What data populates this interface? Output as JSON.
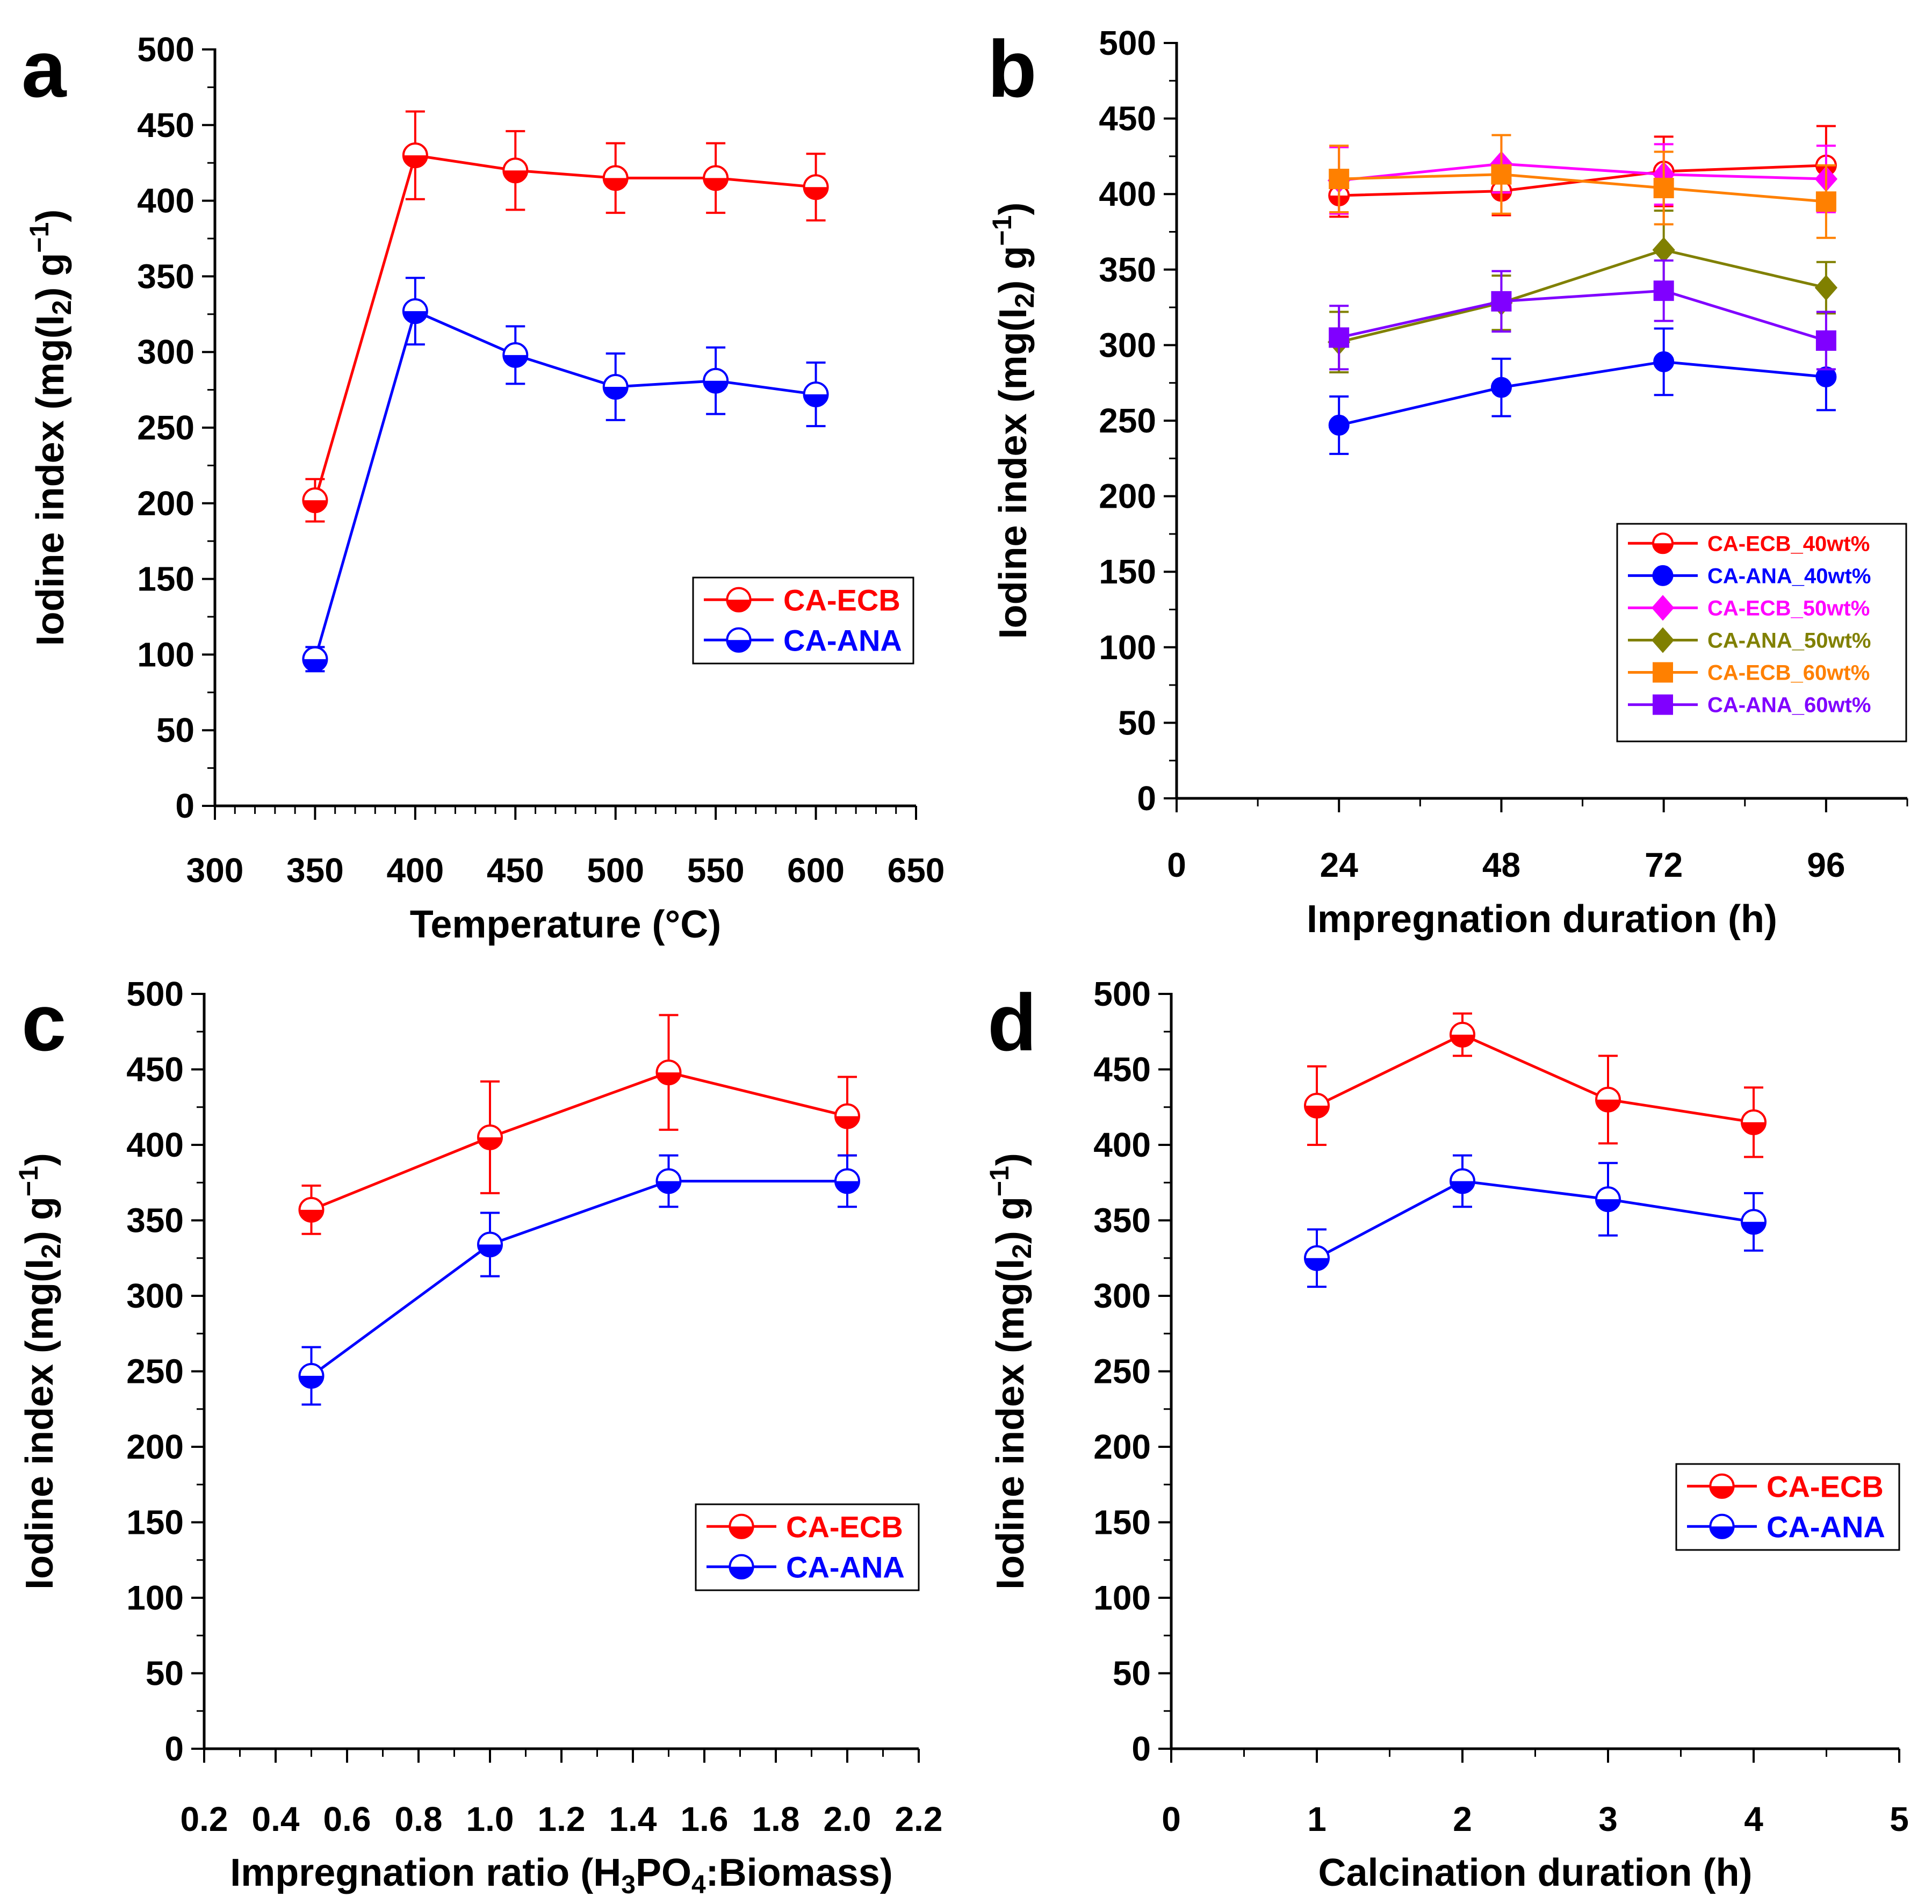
{
  "chart_data": [
    {
      "panel": "a",
      "type": "line",
      "xlabel": "Temperature (°C)",
      "ylabel": "Iodine index (mg(I2) g-1)",
      "xlim": [
        300,
        650
      ],
      "ylim": [
        0,
        500
      ],
      "xticks": [
        300,
        350,
        400,
        450,
        500,
        550,
        600,
        650
      ],
      "yticks": [
        0,
        50,
        100,
        150,
        200,
        250,
        300,
        350,
        400,
        450,
        500
      ],
      "x": [
        350,
        400,
        450,
        500,
        550,
        600
      ],
      "series": [
        {
          "name": "CA-ECB",
          "color": "#ff0000",
          "marker": "half-circle",
          "values": [
            202,
            430,
            420,
            415,
            415,
            409
          ],
          "errors": [
            14,
            29,
            26,
            23,
            23,
            22
          ]
        },
        {
          "name": "CA-ANA",
          "color": "#0000ff",
          "marker": "half-circle",
          "values": [
            97,
            327,
            298,
            277,
            281,
            272
          ],
          "errors": [
            8,
            22,
            19,
            22,
            22,
            21
          ]
        }
      ],
      "legend": "center-right"
    },
    {
      "panel": "b",
      "type": "line",
      "xlabel": "Impregnation duration (h)",
      "ylabel": "Iodine index (mg(I2) g-1)",
      "xlim": [
        0,
        108
      ],
      "ylim": [
        0,
        500
      ],
      "xticks": [
        0,
        24,
        48,
        72,
        96
      ],
      "yticks": [
        0,
        50,
        100,
        150,
        200,
        250,
        300,
        350,
        400,
        450,
        500
      ],
      "x": [
        24,
        48,
        72,
        96
      ],
      "series": [
        {
          "name": "CA-ECB_40wt%",
          "color": "#ff0000",
          "marker": "half-circle",
          "values": [
            399,
            402,
            415,
            419
          ],
          "errors": [
            14,
            16,
            23,
            26
          ]
        },
        {
          "name": "CA-ANA_40wt%",
          "color": "#0000ff",
          "marker": "circle",
          "values": [
            247,
            272,
            289,
            279
          ],
          "errors": [
            19,
            19,
            22,
            22
          ]
        },
        {
          "name": "CA-ECB_50wt%",
          "color": "#ff00ff",
          "marker": "diamond",
          "values": [
            409,
            420,
            413,
            410
          ],
          "errors": [
            22,
            19,
            20,
            22
          ]
        },
        {
          "name": "CA-ANA_50wt%",
          "color": "#808000",
          "marker": "diamond",
          "values": [
            302,
            328,
            363,
            338
          ],
          "errors": [
            20,
            18,
            26,
            17
          ]
        },
        {
          "name": "CA-ECB_60wt%",
          "color": "#ff8000",
          "marker": "square",
          "values": [
            410,
            413,
            404,
            395
          ],
          "errors": [
            22,
            26,
            24,
            24
          ]
        },
        {
          "name": "CA-ANA_60wt%",
          "color": "#8000ff",
          "marker": "square",
          "values": [
            305,
            329,
            336,
            303
          ],
          "errors": [
            21,
            20,
            20,
            19
          ]
        }
      ],
      "legend": "bottom-right"
    },
    {
      "panel": "c",
      "type": "line",
      "xlabel": "Impregnation ratio (H3PO4:Biomass)",
      "ylabel": "Iodine index (mg(I2) g-1)",
      "xlim": [
        0.2,
        2.2
      ],
      "ylim": [
        0,
        500
      ],
      "xticks": [
        0.2,
        0.4,
        0.6,
        0.8,
        1.0,
        1.2,
        1.4,
        1.6,
        1.8,
        2.0,
        2.2
      ],
      "xtick_labels": [
        "0.2",
        "0.4",
        "0.6",
        "0.8",
        "1.0",
        "1.2",
        "1.4",
        "1.6",
        "1.8",
        "2.0",
        "2.2"
      ],
      "yticks": [
        0,
        50,
        100,
        150,
        200,
        250,
        300,
        350,
        400,
        450,
        500
      ],
      "x": [
        0.5,
        1.0,
        1.5,
        2.0
      ],
      "series": [
        {
          "name": "CA-ECB",
          "color": "#ff0000",
          "marker": "half-circle",
          "values": [
            357,
            405,
            448,
            419
          ],
          "errors": [
            16,
            37,
            38,
            26
          ]
        },
        {
          "name": "CA-ANA",
          "color": "#0000ff",
          "marker": "half-circle",
          "values": [
            247,
            334,
            376,
            376
          ],
          "errors": [
            19,
            21,
            17,
            17
          ]
        }
      ],
      "legend": "center-right"
    },
    {
      "panel": "d",
      "type": "line",
      "xlabel": "Calcination duration (h)",
      "ylabel": "Iodine index (mg(I2) g-1)",
      "xlim": [
        0,
        5
      ],
      "ylim": [
        0,
        500
      ],
      "xticks": [
        0,
        1,
        2,
        3,
        4,
        5
      ],
      "yticks": [
        0,
        50,
        100,
        150,
        200,
        250,
        300,
        350,
        400,
        450,
        500
      ],
      "x": [
        1,
        2,
        3,
        4
      ],
      "series": [
        {
          "name": "CA-ECB",
          "color": "#ff0000",
          "marker": "half-circle",
          "values": [
            426,
            473,
            430,
            415
          ],
          "errors": [
            26,
            14,
            29,
            23
          ]
        },
        {
          "name": "CA-ANA",
          "color": "#0000ff",
          "marker": "half-circle",
          "values": [
            325,
            376,
            364,
            349
          ],
          "errors": [
            19,
            17,
            24,
            19
          ]
        }
      ],
      "legend": "center-right"
    }
  ]
}
